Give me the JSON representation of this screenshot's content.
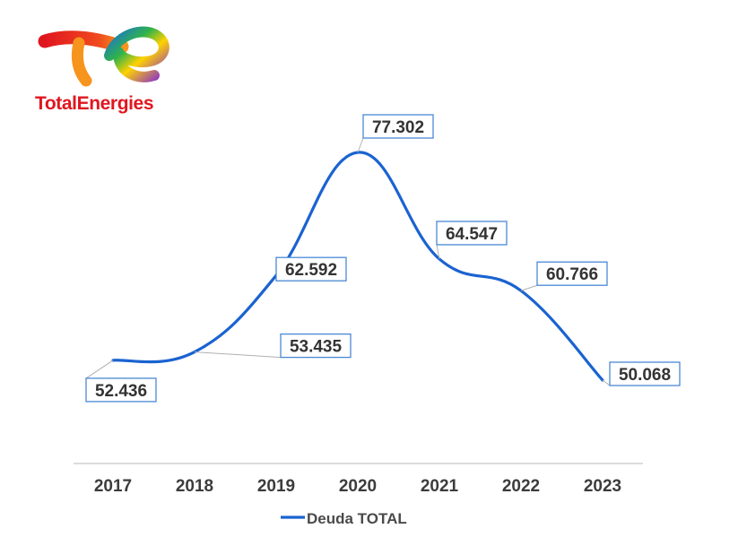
{
  "brand": {
    "name": "TotalEnergies",
    "colors": {
      "red": "#e0161f",
      "orange": "#f7941d",
      "yellow": "#ffd200",
      "green": "#2fb34a",
      "blue": "#1b6fd8",
      "purple": "#8b2fc9"
    }
  },
  "chart_data": {
    "type": "line",
    "title": "",
    "xlabel": "",
    "ylabel": "",
    "categories": [
      "2017",
      "2018",
      "2019",
      "2020",
      "2021",
      "2022",
      "2023"
    ],
    "series": [
      {
        "name": "Deuda TOTAL",
        "color": "#1a63d1",
        "values": [
          52.436,
          53.435,
          62.592,
          77.302,
          64.547,
          60.766,
          50.068
        ],
        "labels": [
          "52.436",
          "53.435",
          "62.592",
          "77.302",
          "64.547",
          "60.766",
          "50.068"
        ]
      }
    ],
    "ylim": [
      35,
      80
    ],
    "grid": false,
    "smooth": true,
    "legend": "bottom-center"
  }
}
